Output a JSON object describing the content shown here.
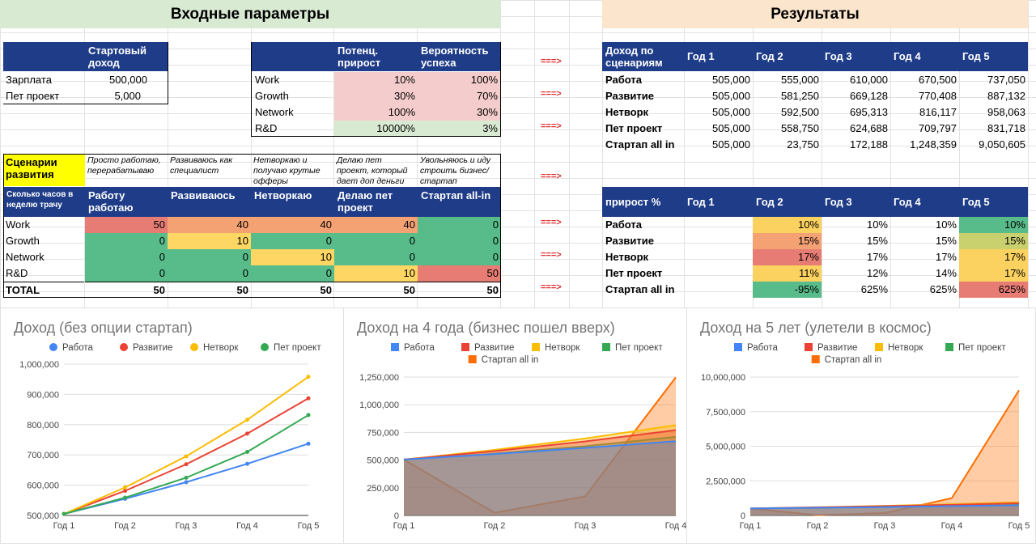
{
  "sections": {
    "inputs": "Входные параметры",
    "results": "Результаты"
  },
  "income_table": {
    "header": "Стартовый доход",
    "rows": [
      {
        "label": "Зарплата",
        "value": "500,000"
      },
      {
        "label": "Пет проект",
        "value": "5,000"
      }
    ]
  },
  "growth_table": {
    "headers": [
      "Потенц. прирост",
      "Вероятность успеха"
    ],
    "rows": [
      {
        "label": "Work",
        "growth": "10%",
        "prob": "100%"
      },
      {
        "label": "Growth",
        "growth": "30%",
        "prob": "70%"
      },
      {
        "label": "Network",
        "growth": "100%",
        "prob": "30%"
      },
      {
        "label": "R&D",
        "growth": "10000%",
        "prob": "3%"
      }
    ]
  },
  "arrow": "===>",
  "scenarios": {
    "title": "Сценарии развития",
    "descriptions": [
      "Просто работаю, перерабатываю",
      "Развиваюсь как специалист",
      "Нетворкаю и получаю крутые офферы",
      "Делаю пет проект, который дает доп деньги",
      "Увольняюсь и иду строить бизнес/стартап"
    ],
    "hours_label": "Сколько часов в неделю трачу",
    "columns": [
      "Работу работаю",
      "Развиваюсь",
      "Нетворкаю",
      "Делаю пет проект",
      "Стартап all-in"
    ],
    "rows": [
      {
        "label": "Work",
        "values": [
          "50",
          "40",
          "40",
          "40",
          "0"
        ]
      },
      {
        "label": "Growth",
        "values": [
          "0",
          "10",
          "0",
          "0",
          "0"
        ]
      },
      {
        "label": "Network",
        "values": [
          "0",
          "0",
          "10",
          "0",
          "0"
        ]
      },
      {
        "label": "R&D",
        "values": [
          "0",
          "0",
          "0",
          "10",
          "50"
        ]
      }
    ],
    "total": {
      "label": "TOTAL",
      "values": [
        "50",
        "50",
        "50",
        "50",
        "50"
      ]
    }
  },
  "income_results": {
    "header": "Доход по сценариям",
    "years": [
      "Год 1",
      "Год 2",
      "Год 3",
      "Год 4",
      "Год 5"
    ],
    "rows": [
      {
        "label": "Работа",
        "values": [
          "505,000",
          "555,000",
          "610,000",
          "670,500",
          "737,050"
        ]
      },
      {
        "label": "Развитие",
        "values": [
          "505,000",
          "581,250",
          "669,128",
          "770,408",
          "887,132"
        ]
      },
      {
        "label": "Нетворк",
        "values": [
          "505,000",
          "592,500",
          "695,313",
          "816,117",
          "958,063"
        ]
      },
      {
        "label": "Пет проект",
        "values": [
          "505,000",
          "558,750",
          "624,688",
          "709,797",
          "831,718"
        ]
      },
      {
        "label": "Стартап all in",
        "values": [
          "505,000",
          "23,750",
          "172,188",
          "1,248,359",
          "9,050,605"
        ]
      }
    ]
  },
  "growth_results": {
    "header": "прирост %",
    "years": [
      "Год 1",
      "Год 2",
      "Год 3",
      "Год 4",
      "Год 5"
    ],
    "rows": [
      {
        "label": "Работа",
        "values": [
          "",
          "10%",
          "10%",
          "10%",
          "10%"
        ]
      },
      {
        "label": "Развитие",
        "values": [
          "",
          "15%",
          "15%",
          "15%",
          "15%"
        ]
      },
      {
        "label": "Нетворк",
        "values": [
          "",
          "17%",
          "17%",
          "17%",
          "17%"
        ]
      },
      {
        "label": "Пет проект",
        "values": [
          "",
          "11%",
          "12%",
          "14%",
          "17%"
        ]
      },
      {
        "label": "Стартап all in",
        "values": [
          "",
          "-95%",
          "625%",
          "625%",
          "625%"
        ]
      }
    ]
  },
  "colors": {
    "header_blue": "#1f3c88",
    "work": "#4285f4",
    "dev": "#ea4335",
    "net": "#fbbc04",
    "pet": "#34a853",
    "startup": "#ff6d01"
  },
  "legend": [
    "Работа",
    "Развитие",
    "Нетворк",
    "Пет проект",
    "Стартап all in"
  ],
  "chart_data": [
    {
      "type": "line",
      "title": "Доход (без опции стартап)",
      "categories": [
        "Год 1",
        "Год 2",
        "Год 3",
        "Год 4",
        "Год 5"
      ],
      "yticks": [
        "500,000",
        "600,000",
        "700,000",
        "800,000",
        "900,000",
        "1,000,000"
      ],
      "ylim": [
        500000,
        1000000
      ],
      "series": [
        {
          "name": "Работа",
          "values": [
            505000,
            555000,
            610000,
            670500,
            737050
          ]
        },
        {
          "name": "Развитие",
          "values": [
            505000,
            581250,
            669128,
            770408,
            887132
          ]
        },
        {
          "name": "Нетворк",
          "values": [
            505000,
            592500,
            695313,
            816117,
            958063
          ]
        },
        {
          "name": "Пет проект",
          "values": [
            505000,
            558750,
            624688,
            709797,
            831718
          ]
        }
      ]
    },
    {
      "type": "area",
      "title": "Доход на 4 года (бизнес пошел вверх)",
      "categories": [
        "Год 1",
        "Год 2",
        "Год 3",
        "Год 4"
      ],
      "yticks": [
        "0",
        "250,000",
        "500,000",
        "750,000",
        "1,000,000",
        "1,250,000"
      ],
      "ylim": [
        0,
        1250000
      ],
      "series": [
        {
          "name": "Работа",
          "values": [
            505000,
            555000,
            610000,
            670500
          ]
        },
        {
          "name": "Развитие",
          "values": [
            505000,
            581250,
            669128,
            770408
          ]
        },
        {
          "name": "Нетворк",
          "values": [
            505000,
            592500,
            695313,
            816117
          ]
        },
        {
          "name": "Пет проект",
          "values": [
            505000,
            558750,
            624688,
            709797
          ]
        },
        {
          "name": "Стартап all in",
          "values": [
            505000,
            23750,
            172188,
            1248359
          ]
        }
      ]
    },
    {
      "type": "area",
      "title": "Доход на 5 лет (улетели в космос)",
      "categories": [
        "Год 1",
        "Год 2",
        "Год 3",
        "Год 4",
        "Год 5"
      ],
      "yticks": [
        "0",
        "2,500,000",
        "5,000,000",
        "7,500,000",
        "10,000,000"
      ],
      "ylim": [
        0,
        10000000
      ],
      "series": [
        {
          "name": "Работа",
          "values": [
            505000,
            555000,
            610000,
            670500,
            737050
          ]
        },
        {
          "name": "Развитие",
          "values": [
            505000,
            581250,
            669128,
            770408,
            887132
          ]
        },
        {
          "name": "Нетворк",
          "values": [
            505000,
            592500,
            695313,
            816117,
            958063
          ]
        },
        {
          "name": "Пет проект",
          "values": [
            505000,
            558750,
            624688,
            709797,
            831718
          ]
        },
        {
          "name": "Стартап all in",
          "values": [
            505000,
            23750,
            172188,
            1248359,
            9050605
          ]
        }
      ]
    }
  ]
}
